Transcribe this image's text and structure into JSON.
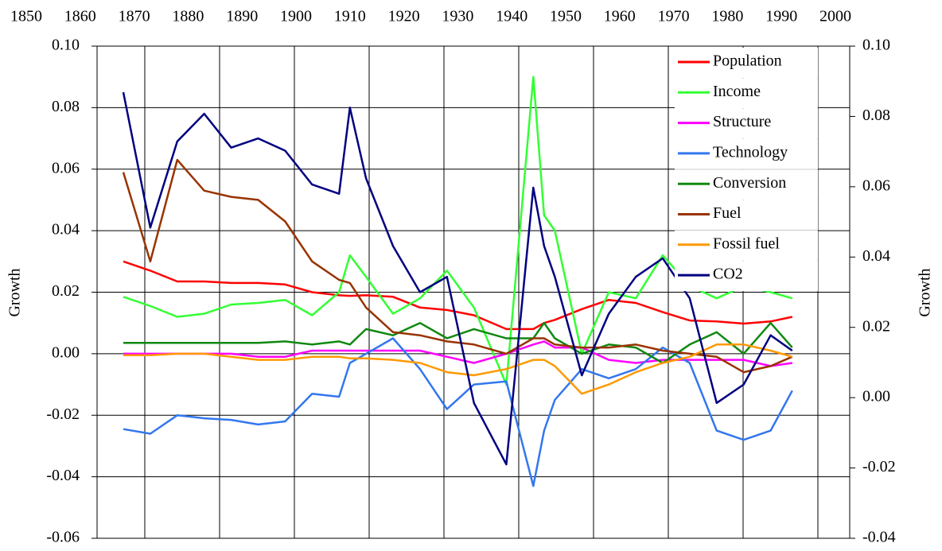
{
  "chart_data": {
    "type": "line",
    "ylabel": "Growth",
    "y2label": "Growth",
    "x": [
      1868,
      1873,
      1878,
      1883,
      1888,
      1893,
      1898,
      1903,
      1908,
      1910,
      1913,
      1918,
      1923,
      1928,
      1933,
      1939,
      1944,
      1946,
      1948,
      1953,
      1958,
      1963,
      1968,
      1973,
      1978,
      1983,
      1988,
      1992
    ],
    "xlim": [
      1850,
      2000
    ],
    "xticks": [
      1850,
      1860,
      1870,
      1880,
      1890,
      1900,
      1910,
      1920,
      1930,
      1940,
      1950,
      1960,
      1970,
      1980,
      1990,
      2000
    ],
    "ylim": [
      -0.06,
      0.1
    ],
    "yticks": [
      {
        "value": 0.1,
        "label": "0.10"
      },
      0.08,
      0.06,
      0.04,
      0.02,
      {
        "value": 0,
        "label": "0.00"
      },
      -0.02,
      -0.04,
      -0.06
    ],
    "y2lim": [
      -0.04,
      0.1
    ],
    "y2ticks": [
      {
        "value": 0.1,
        "label": "0.10"
      },
      0.08,
      0.06,
      0.04,
      0.02,
      {
        "value": 0,
        "label": "0.00"
      },
      -0.02,
      -0.04
    ],
    "grid": true,
    "legend": "upper right",
    "series": [
      {
        "name": "Population",
        "color": "#ff0000",
        "values": [
          0.03,
          0.027,
          0.0235,
          0.0235,
          0.023,
          0.023,
          0.0225,
          0.02,
          0.019,
          0.0188,
          0.019,
          0.0185,
          0.015,
          0.0142,
          0.0125,
          0.008,
          0.008,
          0.01,
          0.011,
          0.0145,
          0.0175,
          0.0165,
          0.0135,
          0.0108,
          0.0105,
          0.0098,
          0.0105,
          0.012
        ]
      },
      {
        "name": "Income",
        "color": "#33ff33",
        "values": [
          0.0185,
          0.0155,
          0.012,
          0.013,
          0.016,
          0.0165,
          0.0175,
          0.0125,
          0.02,
          0.032,
          0.025,
          0.013,
          0.018,
          0.027,
          0.015,
          -0.01,
          0.09,
          0.045,
          0.04,
          0.0,
          0.02,
          0.018,
          0.032,
          0.022,
          0.018,
          0.022,
          0.02,
          0.018
        ]
      },
      {
        "name": "Structure",
        "color": "#ff00ff",
        "values": [
          0,
          0,
          0,
          0,
          0,
          -0.001,
          -0.001,
          0.001,
          0.001,
          0.001,
          0.001,
          0.001,
          0.001,
          -0.001,
          -0.003,
          0,
          0.003,
          0.004,
          0.002,
          0.002,
          -0.002,
          -0.003,
          -0.002,
          -0.002,
          -0.002,
          -0.002,
          -0.004,
          -0.003
        ]
      },
      {
        "name": "Technology",
        "color": "#3377ee",
        "values": [
          -0.0245,
          -0.026,
          -0.02,
          -0.021,
          -0.0215,
          -0.023,
          -0.022,
          -0.013,
          -0.014,
          -0.003,
          0,
          0.005,
          -0.005,
          -0.018,
          -0.01,
          -0.009,
          -0.043,
          -0.025,
          -0.015,
          -0.005,
          -0.008,
          -0.005,
          0.002,
          -0.003,
          -0.025,
          -0.028,
          -0.025,
          -0.012
        ]
      },
      {
        "name": "Conversion",
        "color": "#118811",
        "values": [
          0.0035,
          0.0035,
          0.0035,
          0.0035,
          0.0035,
          0.0035,
          0.004,
          0.003,
          0.004,
          0.003,
          0.008,
          0.006,
          0.01,
          0.005,
          0.008,
          0.005,
          0.005,
          0.01,
          0.005,
          0,
          0.003,
          0.002,
          -0.003,
          0.003,
          0.007,
          0,
          0.01,
          0.002
        ]
      },
      {
        "name": "Fuel",
        "color": "#993300",
        "values": [
          0.059,
          0.03,
          0.063,
          0.053,
          0.051,
          0.05,
          0.043,
          0.03,
          0.024,
          0.023,
          0.015,
          0.007,
          0.006,
          0.004,
          0.003,
          0,
          0.005,
          0.005,
          0.003,
          0.002,
          0.002,
          0.003,
          0.001,
          0,
          -0.001,
          -0.006,
          -0.004,
          -0.001
        ]
      },
      {
        "name": "Fossil fuel",
        "color": "#ff9900",
        "values": [
          -0.0005,
          -0.0005,
          0,
          0,
          -0.001,
          -0.002,
          -0.002,
          -0.001,
          -0.001,
          -0.0015,
          -0.0015,
          -0.002,
          -0.003,
          -0.006,
          -0.007,
          -0.005,
          -0.002,
          -0.002,
          -0.004,
          -0.013,
          -0.01,
          -0.006,
          -0.003,
          -0.001,
          0.003,
          0.003,
          0.001,
          -0.001
        ]
      },
      {
        "name": "CO2",
        "color": "#000080",
        "values": [
          0.085,
          0.041,
          0.069,
          0.078,
          0.067,
          0.07,
          0.066,
          0.055,
          0.052,
          0.08,
          0.057,
          0.035,
          0.02,
          0.025,
          -0.016,
          -0.036,
          0.054,
          0.035,
          0.025,
          -0.007,
          0.013,
          0.025,
          0.031,
          0.018,
          -0.016,
          -0.01,
          0.006,
          0.001
        ]
      }
    ]
  }
}
